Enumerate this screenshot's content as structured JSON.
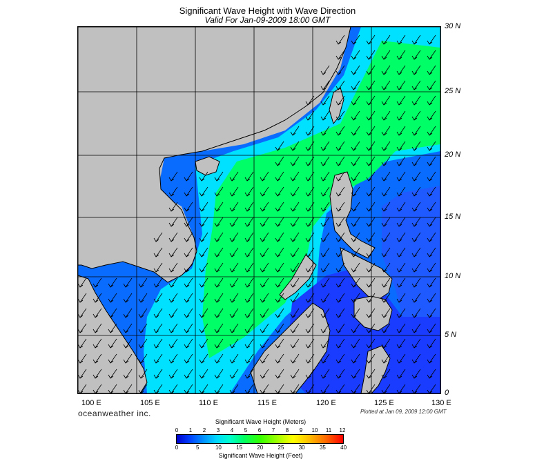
{
  "header": {
    "title": "Significant Wave Height with Wave Direction",
    "subtitle": "Valid For Jan-09-2009 18:00 GMT"
  },
  "map": {
    "lat_labels": [
      "30 N",
      "25 N",
      "20 N",
      "15 N",
      "10 N",
      "5 N",
      "0"
    ],
    "lon_labels": [
      "100 E",
      "105 E",
      "110 E",
      "115 E",
      "120 E",
      "125 E",
      "130 E"
    ],
    "land_color": "#c0c0c0",
    "wave_direction": "arrows pointing southwest"
  },
  "footer": {
    "brand": "oceanweather inc.",
    "plotted": "Plotted at Jan 09, 2009 12:00 GMT"
  },
  "colorbar": {
    "title_meters": "Significant Wave Height (Meters)",
    "title_feet": "Significant Wave Height (Feet)",
    "ticks_meters": [
      "0",
      "1",
      "2",
      "3",
      "4",
      "5",
      "6",
      "7",
      "8",
      "9",
      "10",
      "11",
      "12"
    ],
    "ticks_feet": [
      "0",
      "5",
      "10",
      "15",
      "20",
      "25",
      "30",
      "35",
      "40"
    ],
    "colors": [
      "#0000cc",
      "#0090ff",
      "#00ffcc",
      "#33ff00",
      "#ffff00",
      "#ff6600",
      "#ff0000"
    ]
  }
}
